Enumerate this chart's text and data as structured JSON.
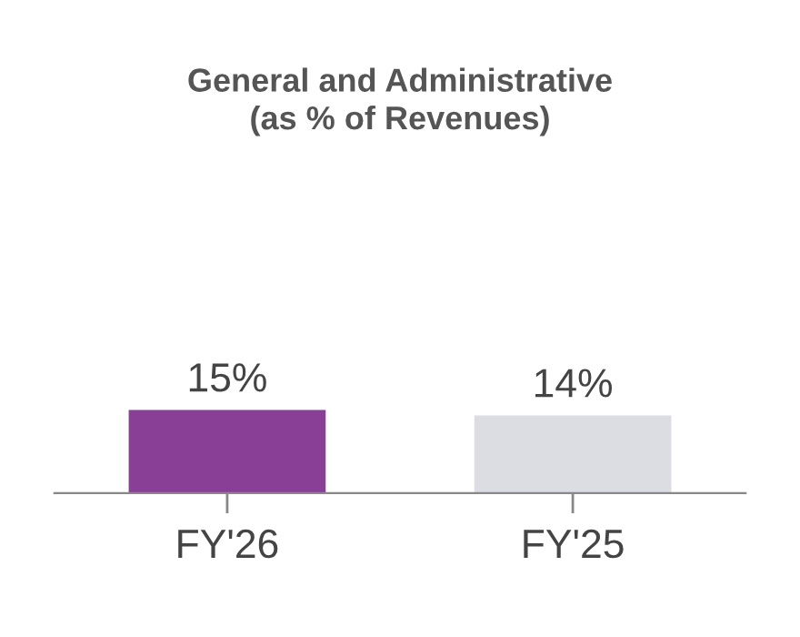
{
  "chart_data": {
    "type": "bar",
    "title": "General and Administrative\n(as % of Revenues)",
    "categories": [
      "FY'26",
      "FY'25"
    ],
    "values": [
      15,
      14
    ],
    "colors": [
      "#8a3f96",
      "#dcdce3"
    ],
    "value_labels": [
      "15%",
      "14%"
    ],
    "grid": false,
    "legend": false
  }
}
